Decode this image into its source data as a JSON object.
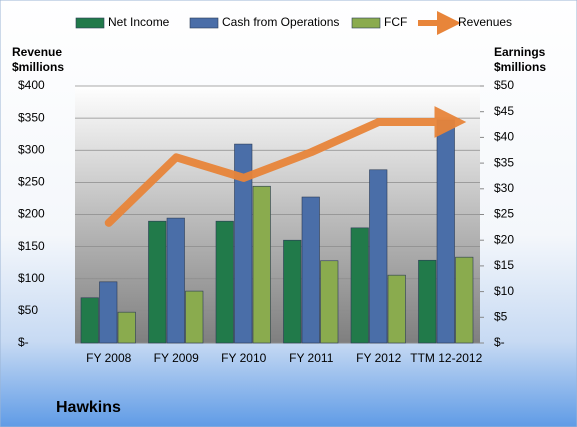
{
  "chart_data": {
    "type": "bar-line",
    "title": "Hawkins",
    "y_label": "Revenue\n$millions",
    "y2_label": "Earnings\n$millions",
    "categories": [
      "FY 2008",
      "FY 2009",
      "FY 2010",
      "FY 2011",
      "FY 2012",
      "TTM 12-2012"
    ],
    "series": [
      {
        "name": "Net Income",
        "color": "#217a4a",
        "type": "bar",
        "axis": "y2",
        "values": [
          8.8,
          23.7,
          23.7,
          20.0,
          22.4,
          16.1
        ]
      },
      {
        "name": "Cash from Operations",
        "color": "#4a6ea8",
        "type": "bar",
        "axis": "y2",
        "values": [
          11.9,
          24.3,
          38.7,
          28.4,
          33.7,
          43.4
        ]
      },
      {
        "name": "FCF",
        "color": "#8aab4e",
        "type": "bar",
        "axis": "y2",
        "values": [
          6.0,
          10.1,
          30.5,
          16.0,
          13.2,
          16.7
        ]
      },
      {
        "name": "Revenues",
        "color": "#e8853a",
        "type": "line",
        "values": [
          187,
          289,
          257,
          297,
          344,
          344
        ]
      }
    ],
    "ylim": [
      0,
      400
    ],
    "yticks": [
      {
        "value": 0,
        "label": "$-"
      },
      {
        "value": 50,
        "label": "$50"
      },
      {
        "value": 100,
        "label": "$100"
      },
      {
        "value": 150,
        "label": "$150"
      },
      {
        "value": 200,
        "label": "$200"
      },
      {
        "value": 250,
        "label": "$250"
      },
      {
        "value": 300,
        "label": "$300"
      },
      {
        "value": 350,
        "label": "$350"
      },
      {
        "value": 400,
        "label": "$400"
      }
    ],
    "y2lim": [
      0,
      50
    ],
    "y2ticks": [
      {
        "value": 0,
        "label": "$-"
      },
      {
        "value": 5,
        "label": "$5"
      },
      {
        "value": 10,
        "label": "$10"
      },
      {
        "value": 15,
        "label": "$15"
      },
      {
        "value": 20,
        "label": "$20"
      },
      {
        "value": 25,
        "label": "$25"
      },
      {
        "value": 30,
        "label": "$30"
      },
      {
        "value": 35,
        "label": "$35"
      },
      {
        "value": 40,
        "label": "$40"
      },
      {
        "value": 45,
        "label": "$45"
      },
      {
        "value": 50,
        "label": "$50"
      }
    ],
    "grid": true,
    "legend": "top"
  }
}
